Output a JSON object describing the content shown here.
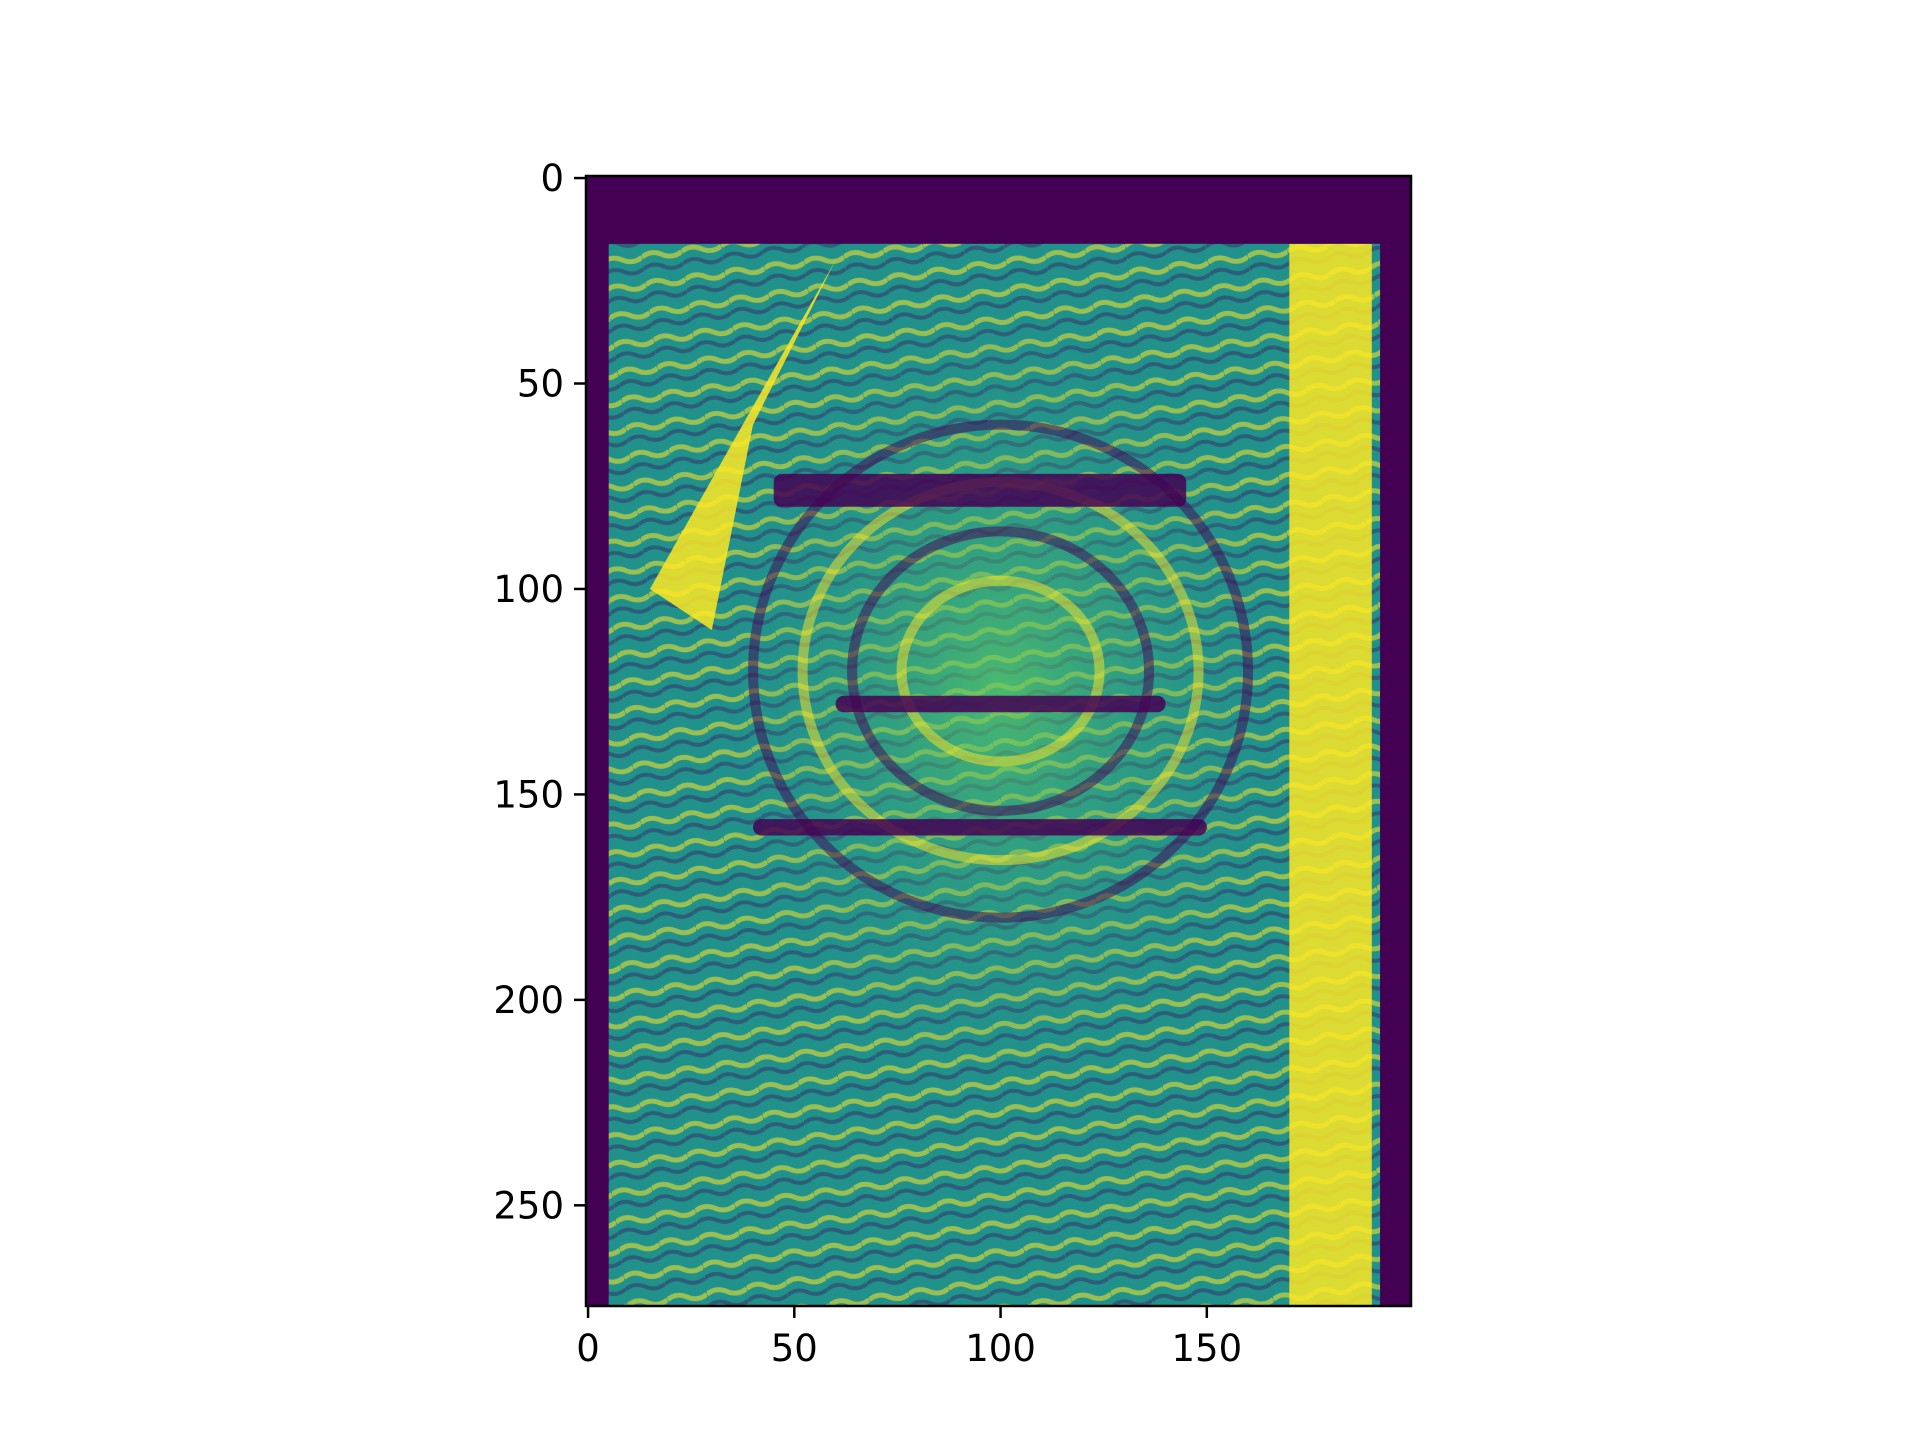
{
  "chart_data": {
    "type": "heatmap",
    "description_type": "image",
    "colormap": "viridis",
    "colormap_stops": [
      "#440154",
      "#3b528b",
      "#21918c",
      "#5ec962",
      "#fde725"
    ],
    "title": "",
    "xlabel": "",
    "ylabel": "",
    "xlim": [
      -0.5,
      199.5
    ],
    "ylim": [
      274.5,
      -0.5
    ],
    "y_inverted": true,
    "grid": false,
    "legend": "none",
    "x_ticks": [
      0,
      50,
      100,
      150
    ],
    "x_tick_labels": [
      "0",
      "50",
      "100",
      "150"
    ],
    "y_ticks": [
      0,
      50,
      100,
      150,
      200,
      250
    ],
    "y_tick_labels": [
      "0",
      "50",
      "100",
      "150",
      "200",
      "250"
    ],
    "image_shape": [
      275,
      200
    ],
    "regions": {
      "dark_band_rows": [
        0,
        16
      ],
      "left_dark_border_cols": [
        0,
        5
      ],
      "right_bright_band_cols": [
        170,
        190
      ],
      "right_dark_border_cols": [
        192,
        199
      ],
      "upper_left_bright_patch": {
        "x": [
          15,
          40
        ],
        "y": [
          20,
          100
        ]
      },
      "dark_creases": [
        {
          "x": [
            40,
            150
          ],
          "y": [
            156,
            160
          ]
        },
        {
          "x": [
            60,
            140
          ],
          "y": [
            126,
            130
          ]
        },
        {
          "x": [
            45,
            145
          ],
          "y": [
            72,
            80
          ]
        }
      ],
      "whorl_center": {
        "x": 100,
        "y": 125
      }
    }
  }
}
